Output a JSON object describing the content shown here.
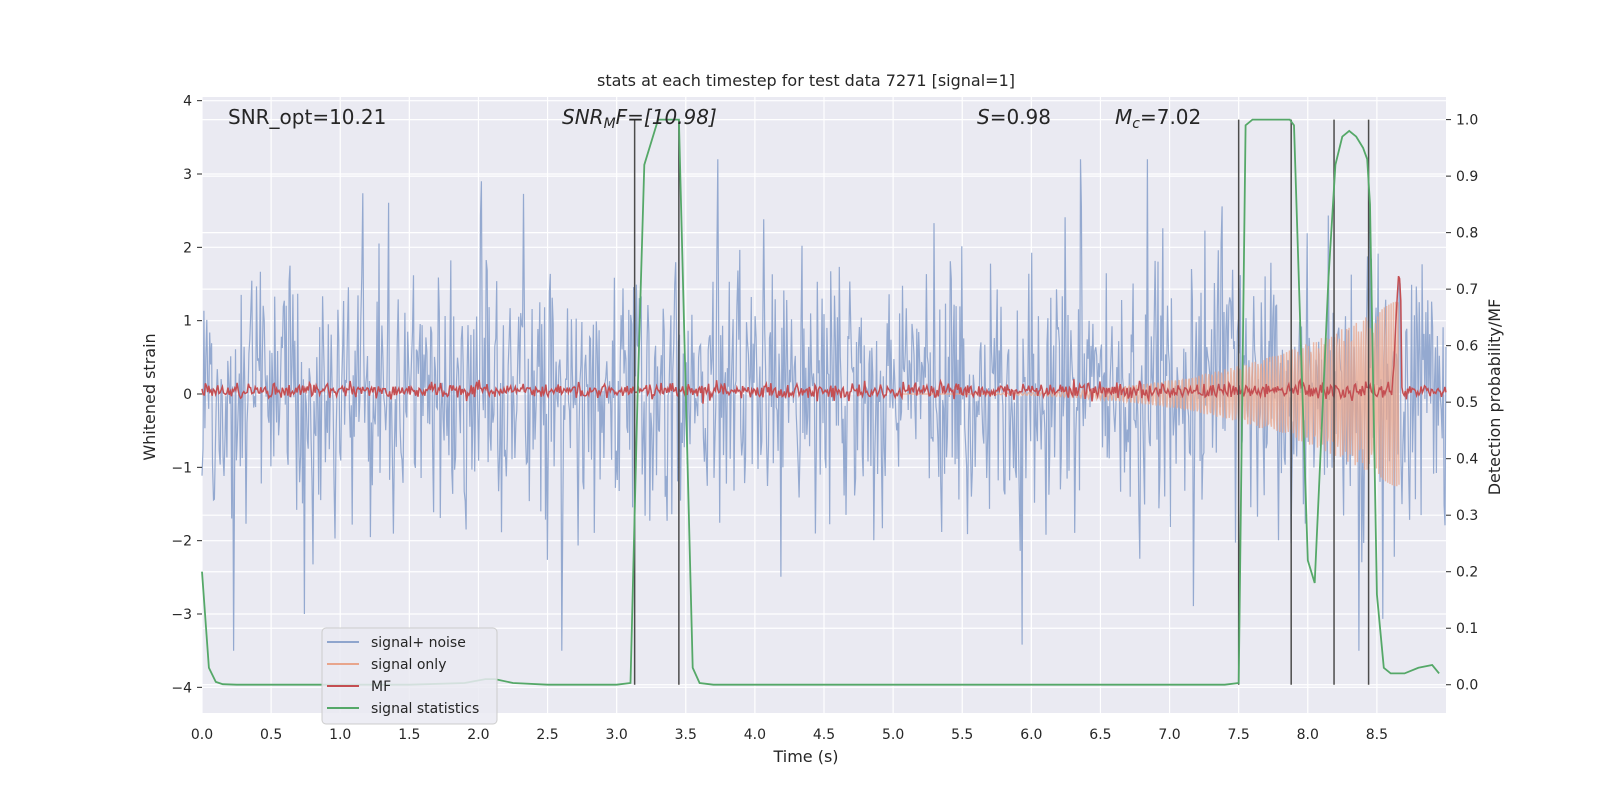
{
  "chart_data": {
    "type": "line",
    "title": "stats at each timestep for test data 7271 [signal=1]",
    "xlabel": "Time (s)",
    "ylabel": "Whitened strain",
    "ylabel_right": "Detection probability/MF",
    "xlim": [
      0.0,
      9.0
    ],
    "ylim": [
      -4.35,
      4.05
    ],
    "ylim_right": [
      -0.05,
      1.04
    ],
    "x_ticks": [
      "0.0",
      "0.5",
      "1.0",
      "1.5",
      "2.0",
      "2.5",
      "3.0",
      "3.5",
      "4.0",
      "4.5",
      "5.0",
      "5.5",
      "6.0",
      "6.5",
      "7.0",
      "7.5",
      "8.0",
      "8.5"
    ],
    "y_ticks": [
      "4",
      "3",
      "2",
      "1",
      "0",
      "−1",
      "−2",
      "−3",
      "−4"
    ],
    "y_ticks_right": [
      "1.0",
      "0.9",
      "0.8",
      "0.7",
      "0.6",
      "0.5",
      "0.4",
      "0.3",
      "0.2",
      "0.1",
      "0.0"
    ],
    "grid": true,
    "legend_position": "lower-left",
    "annotations": {
      "snr_opt": "SNR_opt=10.21",
      "snr_mf_main": "SNR",
      "snr_mf_sub": "M",
      "snr_mf_rest": "F=[10.98]",
      "s_main": "S",
      "s_rest": "=0.98",
      "mc_main": "M",
      "mc_sub": "c",
      "mc_rest": "=7.02"
    },
    "series": [
      {
        "name": "signal+ noise",
        "color": "#8fa5cd",
        "description_stats": {
          "typical_amplitude": 1.4,
          "max": 3.2,
          "min": -3.5
        }
      },
      {
        "name": "signal only",
        "color": "#e8a58c",
        "chirp_start": 5.0,
        "chirp_end": 8.66,
        "max_amplitude": 1.3
      },
      {
        "name": "MF",
        "color": "#c44e52",
        "baseline_right": 0.52,
        "peak_time": 8.66,
        "peak_right": 0.72
      },
      {
        "name": "signal statistics",
        "color": "#55a868",
        "axis": "right",
        "x": [
          0.0,
          0.05,
          0.1,
          0.15,
          0.25,
          0.4,
          0.6,
          1.0,
          1.5,
          1.9,
          2.05,
          2.12,
          2.25,
          2.5,
          3.0,
          3.1,
          3.15,
          3.2,
          3.3,
          3.45,
          3.55,
          3.6,
          3.7,
          4.0,
          5.0,
          6.0,
          7.0,
          7.4,
          7.5,
          7.55,
          7.6,
          7.7,
          7.8,
          7.87,
          7.9,
          7.95,
          8.0,
          8.05,
          8.1,
          8.15,
          8.2,
          8.25,
          8.3,
          8.35,
          8.4,
          8.43,
          8.45,
          8.5,
          8.55,
          8.6,
          8.65,
          8.7,
          8.8,
          8.9,
          8.95
        ],
        "y": [
          0.2,
          0.03,
          0.005,
          0.001,
          0.0,
          0.0,
          0.0,
          0.0,
          0.0,
          0.003,
          0.01,
          0.01,
          0.003,
          0.0,
          0.0,
          0.003,
          0.5,
          0.92,
          1.0,
          1.0,
          0.03,
          0.003,
          0.0,
          0.0,
          0.0,
          0.0,
          0.0,
          0.0,
          0.003,
          0.99,
          1.0,
          1.0,
          1.0,
          1.0,
          0.99,
          0.6,
          0.22,
          0.18,
          0.45,
          0.72,
          0.92,
          0.97,
          0.98,
          0.97,
          0.95,
          0.93,
          0.85,
          0.16,
          0.03,
          0.02,
          0.02,
          0.02,
          0.03,
          0.035,
          0.02
        ]
      }
    ],
    "vertical_lines": [
      3.13,
      3.45,
      7.5,
      7.88,
      8.19,
      8.44
    ],
    "vertical_line_color": "#4c4c4c"
  },
  "legend": {
    "items": [
      {
        "label": "signal+ noise",
        "color": "#8fa5cd"
      },
      {
        "label": "signal only",
        "color": "#e8a58c"
      },
      {
        "label": "MF",
        "color": "#c44e52"
      },
      {
        "label": "signal statistics",
        "color": "#55a868"
      }
    ]
  },
  "colors": {
    "plot_background": "#eaeaf2",
    "grid": "#ffffff"
  }
}
